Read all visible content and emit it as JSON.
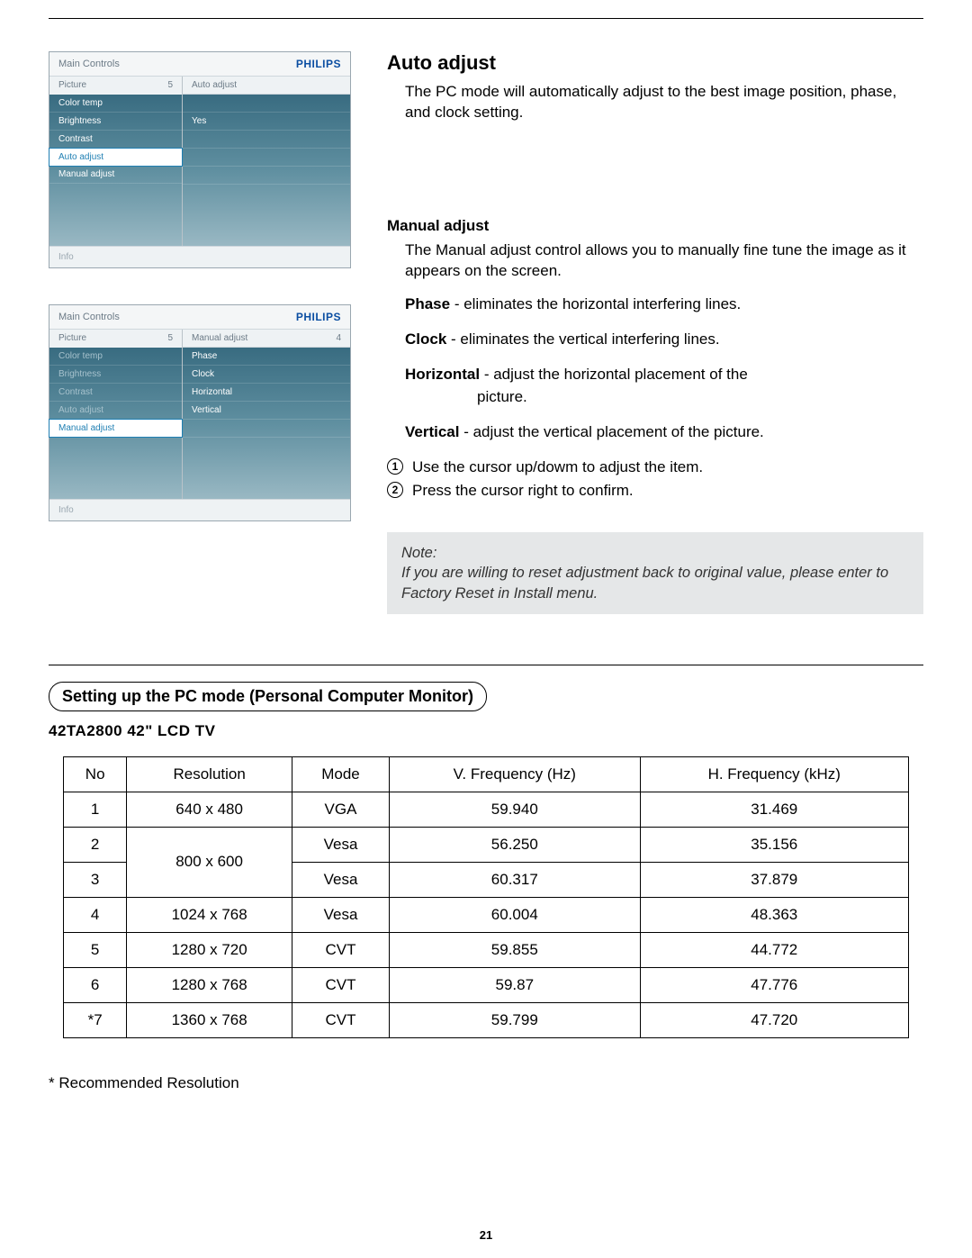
{
  "page_number": "21",
  "osd_brand": "PHILIPS",
  "osd_main_controls_label": "Main Controls",
  "osd_info_label": "Info",
  "osd1": {
    "left_header": {
      "label": "Picture",
      "index": "5"
    },
    "left_items": [
      "Color temp",
      "Brightness",
      "Contrast",
      "Auto adjust",
      "Manual adjust"
    ],
    "active_label": "Auto adjust",
    "right_header": "Auto adjust",
    "right_value": "Yes"
  },
  "osd2": {
    "left_header": {
      "label": "Picture",
      "index": "5"
    },
    "left_items": [
      "Color temp",
      "Brightness",
      "Contrast",
      "Auto adjust",
      "Manual adjust"
    ],
    "active_label": "Manual adjust",
    "right_header": {
      "label": "Manual adjust",
      "index": "4"
    },
    "right_items": [
      "Phase",
      "Clock",
      "Horizontal",
      "Vertical"
    ]
  },
  "auto_adjust": {
    "title": "Auto adjust",
    "desc": "The PC mode will automatically adjust to the best image position, phase, and clock setting."
  },
  "manual_adjust": {
    "title": "Manual adjust",
    "desc": "The Manual adjust control allows you to manually fine tune the image as it appears on the screen.",
    "defs": [
      {
        "term": "Phase",
        "text": " - eliminates the horizontal interfering lines."
      },
      {
        "term": "Clock",
        "text": " - eliminates the vertical interfering lines."
      },
      {
        "term": "Horizontal",
        "text": " - adjust the horizontal placement of the picture.",
        "cont": "picture."
      },
      {
        "term": "Vertical",
        "text": " - adjust the vertical placement of the picture."
      }
    ],
    "steps": [
      "Use the cursor up/dowm to adjust the item.",
      "Press the cursor right to confirm."
    ]
  },
  "note": {
    "label": "Note:",
    "text": "If you are willing to reset adjustment back to original value, please enter to Factory Reset in Install menu."
  },
  "pc_mode": {
    "heading": "Setting up the PC mode (Personal Computer Monitor)",
    "model": "42TA2800 42\" LCD TV",
    "columns": [
      "No",
      "Resolution",
      "Mode",
      "V. Frequency (Hz)",
      "H. Frequency (kHz)"
    ],
    "rows": [
      {
        "no": "1",
        "res": "640 x 480",
        "mode": "VGA",
        "vf": "59.940",
        "hf": "31.469"
      },
      {
        "no": "2",
        "res": "800 x 600",
        "mode": "Vesa",
        "vf": "56.250",
        "hf": "35.156",
        "res_rowspan": 2
      },
      {
        "no": "3",
        "res": null,
        "mode": "Vesa",
        "vf": "60.317",
        "hf": "37.879"
      },
      {
        "no": "4",
        "res": "1024 x 768",
        "mode": "Vesa",
        "vf": "60.004",
        "hf": "48.363"
      },
      {
        "no": "5",
        "res": "1280 x 720",
        "mode": "CVT",
        "vf": "59.855",
        "hf": "44.772"
      },
      {
        "no": "6",
        "res": "1280 x 768",
        "mode": "CVT",
        "vf": "59.87",
        "hf": "47.776"
      },
      {
        "no": "*7",
        "res": "1360 x 768",
        "mode": "CVT",
        "vf": "59.799",
        "hf": "47.720"
      }
    ],
    "footnote": "* Recommended Resolution"
  }
}
